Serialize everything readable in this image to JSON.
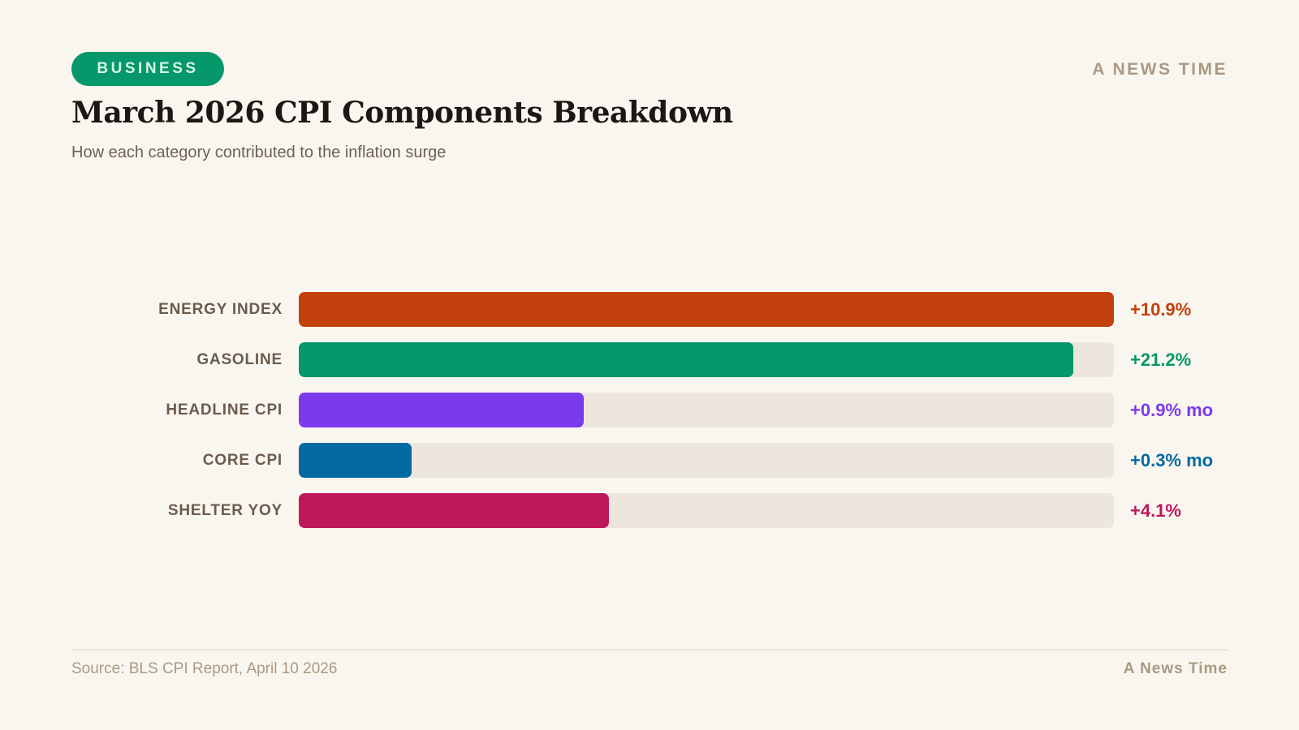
{
  "header": {
    "badge": "BUSINESS",
    "brand": "A NEWS TIME",
    "title": "March 2026 CPI Components Breakdown",
    "subtitle": "How each category contributed to the inflation surge"
  },
  "chart_data": {
    "type": "bar",
    "orientation": "horizontal",
    "grid": false,
    "categories": [
      "ENERGY INDEX",
      "GASOLINE",
      "HEADLINE CPI",
      "CORE CPI",
      "SHELTER YOY"
    ],
    "value_labels": [
      "+10.9%",
      "+21.2%",
      "+0.9% mo",
      "+0.3% mo",
      "+4.1%"
    ],
    "fill_fractions": [
      1.0,
      0.95,
      0.35,
      0.138,
      0.38
    ],
    "colors": [
      "#c2410c",
      "#06976a",
      "#7c3aed",
      "#0369a1",
      "#be185d"
    ],
    "track_color": "#ede6dc"
  },
  "footer": {
    "source": "Source: BLS CPI Report, April 10 2026",
    "brand": "A News Time"
  }
}
